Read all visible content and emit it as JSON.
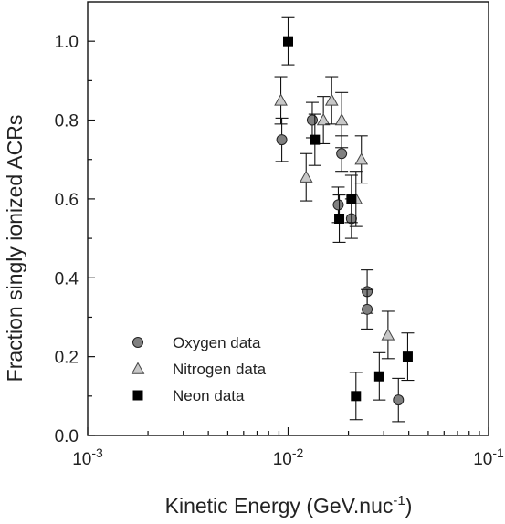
{
  "chart_data": {
    "type": "scatter",
    "xscale": "log",
    "xlim": [
      0.001,
      0.1
    ],
    "ylim": [
      0.0,
      1.1
    ],
    "xlabel": "Kinetic Energy (GeV.nuc",
    "xlabel_sup": "-1",
    "xlabel_end": ")",
    "ylabel": "Fraction singly ionized ACRs",
    "x_ticks": [
      {
        "value": 0.001,
        "base": "10",
        "exp": "-3"
      },
      {
        "value": 0.01,
        "base": "10",
        "exp": "-2"
      },
      {
        "value": 0.1,
        "base": "10",
        "exp": "-1"
      }
    ],
    "y_ticks": [
      {
        "value": 0.0,
        "label": "0.0"
      },
      {
        "value": 0.2,
        "label": "0.2"
      },
      {
        "value": 0.4,
        "label": "0.4"
      },
      {
        "value": 0.6,
        "label": "0.6"
      },
      {
        "value": 0.8,
        "label": "0.8"
      },
      {
        "value": 1.0,
        "label": "1.0"
      }
    ],
    "legend_position": "bottom-left",
    "series": [
      {
        "name": "Oxygen data",
        "marker": "circle",
        "color": "#808080",
        "points": [
          {
            "x": 0.0093,
            "y": 0.75,
            "err": 0.055
          },
          {
            "x": 0.0132,
            "y": 0.8,
            "err": 0.045
          },
          {
            "x": 0.0178,
            "y": 0.585,
            "err": 0.045
          },
          {
            "x": 0.0185,
            "y": 0.715,
            "err": 0.045
          },
          {
            "x": 0.0207,
            "y": 0.55,
            "err": 0.05
          },
          {
            "x": 0.0248,
            "y": 0.365,
            "err": 0.055
          },
          {
            "x": 0.0248,
            "y": 0.32,
            "err": 0.05
          },
          {
            "x": 0.0355,
            "y": 0.09,
            "err": 0.055
          }
        ]
      },
      {
        "name": "Nitrogen data",
        "marker": "triangle",
        "color": "#c8c8c8",
        "points": [
          {
            "x": 0.0092,
            "y": 0.85,
            "err": 0.06
          },
          {
            "x": 0.0123,
            "y": 0.655,
            "err": 0.06
          },
          {
            "x": 0.015,
            "y": 0.8,
            "err": 0.06
          },
          {
            "x": 0.0165,
            "y": 0.85,
            "err": 0.06
          },
          {
            "x": 0.0185,
            "y": 0.8,
            "err": 0.07
          },
          {
            "x": 0.0218,
            "y": 0.6,
            "err": 0.07
          },
          {
            "x": 0.0232,
            "y": 0.7,
            "err": 0.06
          },
          {
            "x": 0.0315,
            "y": 0.255,
            "err": 0.06
          }
        ]
      },
      {
        "name": "Neon data",
        "marker": "square",
        "color": "#000000",
        "points": [
          {
            "x": 0.01,
            "y": 1.0,
            "err": 0.06
          },
          {
            "x": 0.0136,
            "y": 0.75,
            "err": 0.065
          },
          {
            "x": 0.018,
            "y": 0.55,
            "err": 0.06
          },
          {
            "x": 0.0207,
            "y": 0.6,
            "err": 0.06
          },
          {
            "x": 0.0218,
            "y": 0.1,
            "err": 0.06
          },
          {
            "x": 0.0285,
            "y": 0.15,
            "err": 0.06
          },
          {
            "x": 0.0395,
            "y": 0.2,
            "err": 0.06
          }
        ]
      }
    ]
  }
}
